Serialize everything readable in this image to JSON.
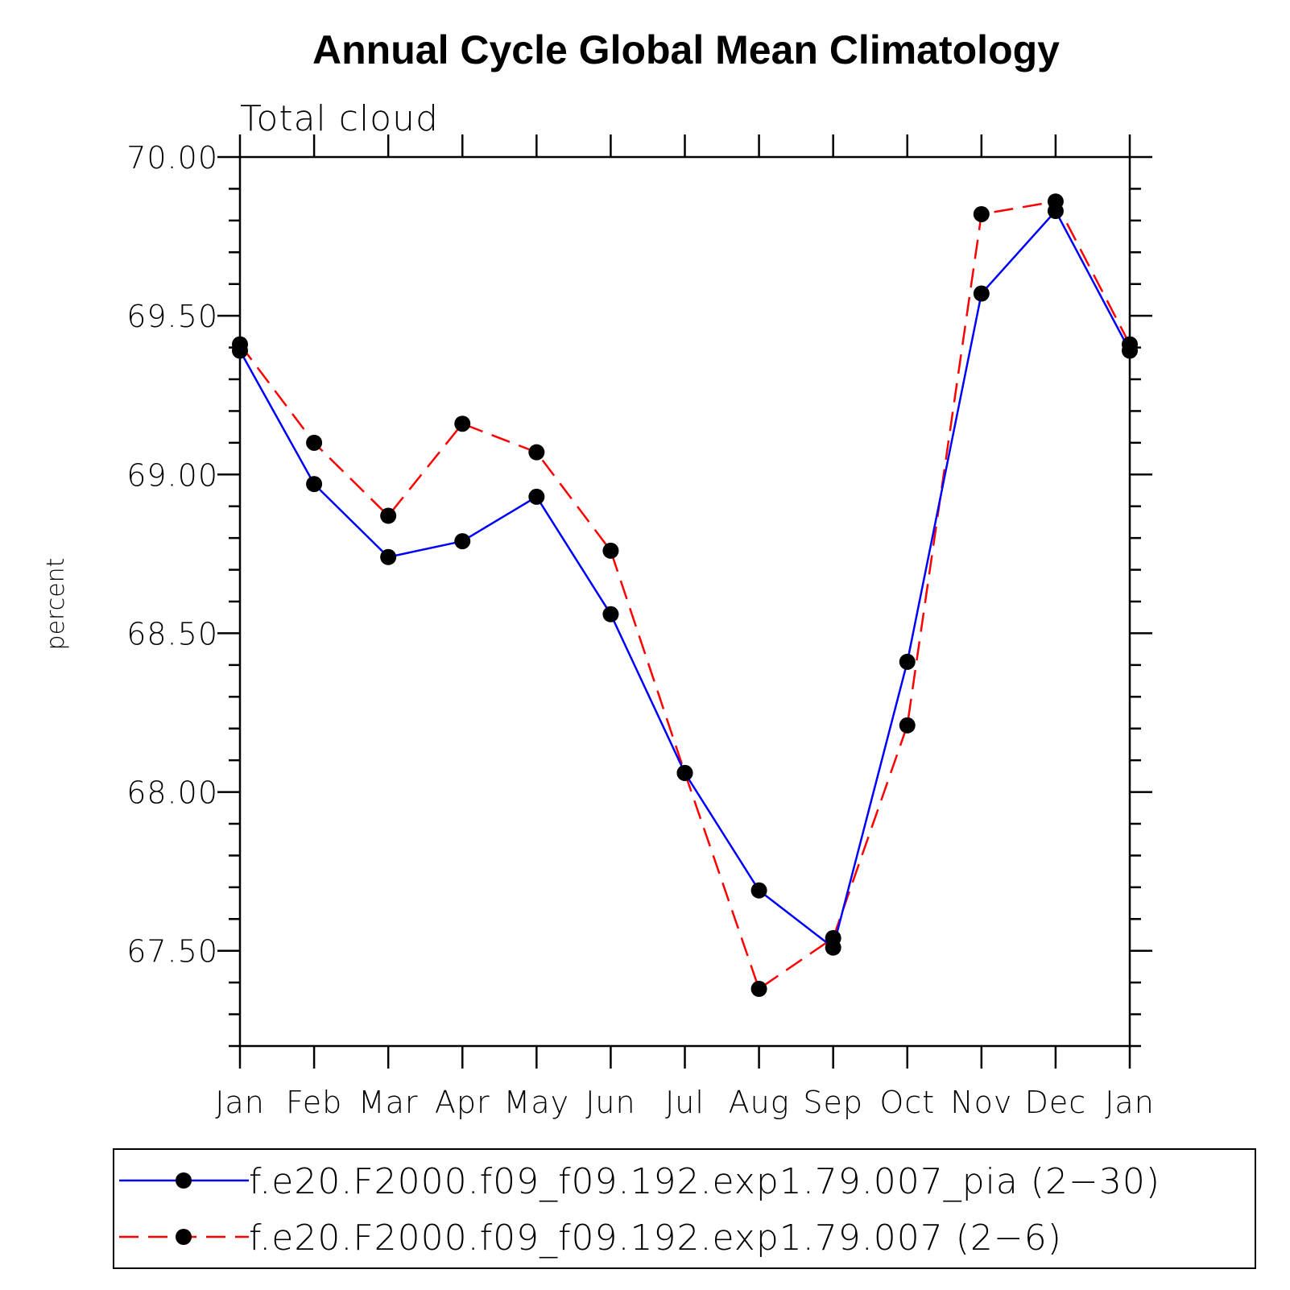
{
  "chart_data": {
    "type": "line",
    "title": "Annual Cycle Global Mean Climatology",
    "subtitle": "Total cloud",
    "xlabel": "",
    "ylabel": "percent",
    "categories": [
      "Jan",
      "Feb",
      "Mar",
      "Apr",
      "May",
      "Jun",
      "Jul",
      "Aug",
      "Sep",
      "Oct",
      "Nov",
      "Dec",
      "Jan"
    ],
    "ylim": [
      67.2,
      70.0
    ],
    "yticks": [
      "67.50",
      "68.00",
      "68.50",
      "69.00",
      "69.50",
      "70.00"
    ],
    "ytick_values": [
      67.5,
      68.0,
      68.5,
      69.0,
      69.5,
      70.0
    ],
    "grid": false,
    "legend_position": "bottom",
    "series": [
      {
        "name": "f.e20.F2000.f09_f09.192.exp1.79.007_pia (2−30)",
        "color": "#0000ff",
        "style": "solid",
        "marker": "circle",
        "values": [
          69.39,
          68.97,
          68.74,
          68.79,
          68.93,
          68.56,
          68.06,
          67.69,
          67.51,
          68.41,
          69.57,
          69.83,
          69.39
        ]
      },
      {
        "name": "f.e20.F2000.f09_f09.192.exp1.79.007 (2−6)",
        "color": "#ff0000",
        "style": "dashed",
        "marker": "circle",
        "values": [
          69.41,
          69.1,
          68.87,
          69.16,
          69.07,
          68.76,
          68.06,
          67.38,
          67.54,
          68.21,
          69.82,
          69.86,
          69.41
        ]
      }
    ]
  }
}
